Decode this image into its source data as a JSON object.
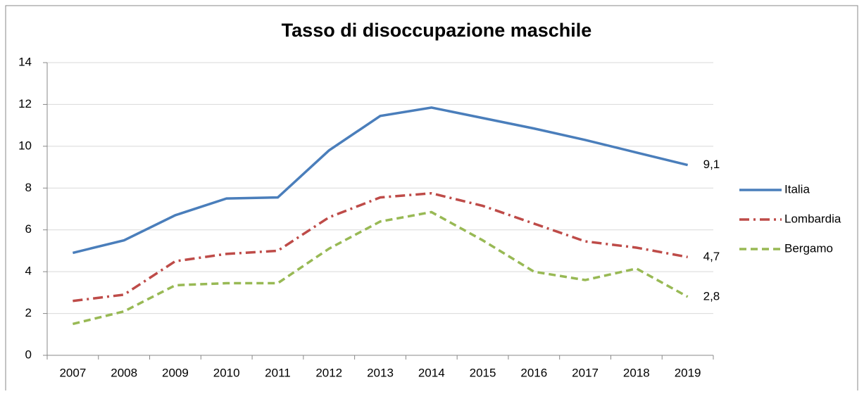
{
  "chart_data": {
    "type": "line",
    "title": "Tasso di disoccupazione maschile",
    "categories": [
      "2007",
      "2008",
      "2009",
      "2010",
      "2011",
      "2012",
      "2013",
      "2014",
      "2015",
      "2016",
      "2017",
      "2018",
      "2019"
    ],
    "series": [
      {
        "name": "Italia",
        "color": "#4a7ebb",
        "dash": "solid",
        "values": [
          4.9,
          5.5,
          6.7,
          7.5,
          7.55,
          9.8,
          11.45,
          11.85,
          11.35,
          10.85,
          10.3,
          9.7,
          9.1
        ],
        "value_labels": [
          null,
          null,
          null,
          null,
          null,
          null,
          null,
          null,
          null,
          null,
          null,
          null,
          "9,1"
        ]
      },
      {
        "name": "Lombardia",
        "color": "#be4b48",
        "dash": "dashdot",
        "values": [
          2.6,
          2.9,
          4.5,
          4.85,
          5.0,
          6.6,
          7.55,
          7.75,
          7.15,
          6.3,
          5.45,
          5.15,
          4.7
        ],
        "value_labels": [
          null,
          null,
          null,
          null,
          null,
          null,
          null,
          null,
          null,
          null,
          null,
          null,
          "4,7"
        ]
      },
      {
        "name": "Bergamo",
        "color": "#98b954",
        "dash": "dashed",
        "values": [
          1.5,
          2.1,
          3.35,
          3.45,
          3.45,
          5.1,
          6.4,
          6.85,
          5.5,
          4.0,
          3.6,
          4.15,
          2.8
        ],
        "value_labels": [
          null,
          null,
          null,
          null,
          null,
          null,
          null,
          null,
          null,
          null,
          null,
          null,
          "2,8"
        ]
      }
    ],
    "ylim": [
      0,
      14
    ],
    "yticks": [
      0,
      2,
      4,
      6,
      8,
      10,
      12,
      14
    ],
    "grid": true,
    "legend": "right"
  }
}
